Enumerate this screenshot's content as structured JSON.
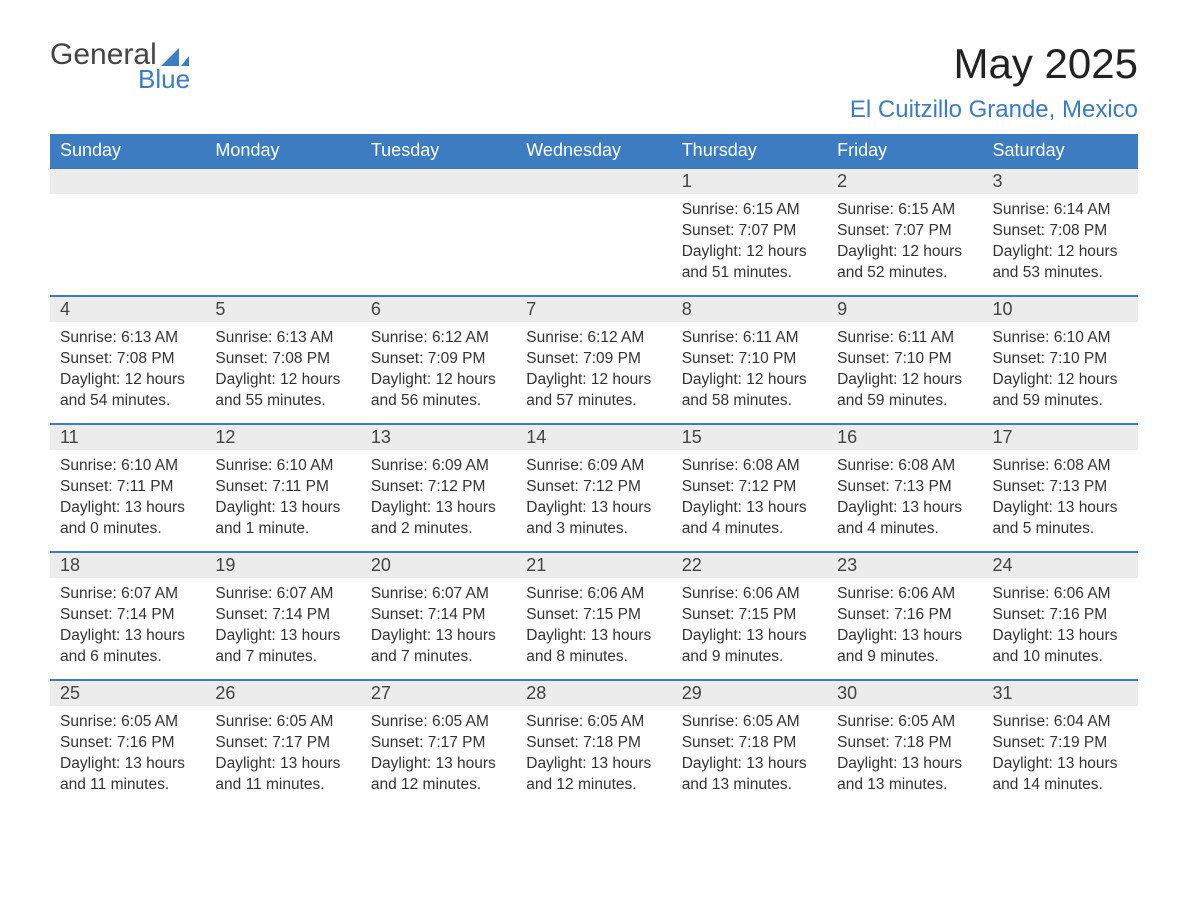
{
  "logo": {
    "text1": "General",
    "text2": "Blue",
    "icon_color": "#3d7cc0"
  },
  "title": "May 2025",
  "location": "El Cuitzillo Grande, Mexico",
  "colors": {
    "header_bg": "#3d7cc0",
    "header_text": "#ffffff",
    "daynum_bg": "#ececec",
    "row_border": "#3d7cc0",
    "body_text": "#333333",
    "page_bg": "#ffffff"
  },
  "weekdays": [
    "Sunday",
    "Monday",
    "Tuesday",
    "Wednesday",
    "Thursday",
    "Friday",
    "Saturday"
  ],
  "weeks": [
    [
      {
        "empty": true
      },
      {
        "empty": true
      },
      {
        "empty": true
      },
      {
        "empty": true
      },
      {
        "day": "1",
        "sunrise": "Sunrise: 6:15 AM",
        "sunset": "Sunset: 7:07 PM",
        "daylight": "Daylight: 12 hours and 51 minutes."
      },
      {
        "day": "2",
        "sunrise": "Sunrise: 6:15 AM",
        "sunset": "Sunset: 7:07 PM",
        "daylight": "Daylight: 12 hours and 52 minutes."
      },
      {
        "day": "3",
        "sunrise": "Sunrise: 6:14 AM",
        "sunset": "Sunset: 7:08 PM",
        "daylight": "Daylight: 12 hours and 53 minutes."
      }
    ],
    [
      {
        "day": "4",
        "sunrise": "Sunrise: 6:13 AM",
        "sunset": "Sunset: 7:08 PM",
        "daylight": "Daylight: 12 hours and 54 minutes."
      },
      {
        "day": "5",
        "sunrise": "Sunrise: 6:13 AM",
        "sunset": "Sunset: 7:08 PM",
        "daylight": "Daylight: 12 hours and 55 minutes."
      },
      {
        "day": "6",
        "sunrise": "Sunrise: 6:12 AM",
        "sunset": "Sunset: 7:09 PM",
        "daylight": "Daylight: 12 hours and 56 minutes."
      },
      {
        "day": "7",
        "sunrise": "Sunrise: 6:12 AM",
        "sunset": "Sunset: 7:09 PM",
        "daylight": "Daylight: 12 hours and 57 minutes."
      },
      {
        "day": "8",
        "sunrise": "Sunrise: 6:11 AM",
        "sunset": "Sunset: 7:10 PM",
        "daylight": "Daylight: 12 hours and 58 minutes."
      },
      {
        "day": "9",
        "sunrise": "Sunrise: 6:11 AM",
        "sunset": "Sunset: 7:10 PM",
        "daylight": "Daylight: 12 hours and 59 minutes."
      },
      {
        "day": "10",
        "sunrise": "Sunrise: 6:10 AM",
        "sunset": "Sunset: 7:10 PM",
        "daylight": "Daylight: 12 hours and 59 minutes."
      }
    ],
    [
      {
        "day": "11",
        "sunrise": "Sunrise: 6:10 AM",
        "sunset": "Sunset: 7:11 PM",
        "daylight": "Daylight: 13 hours and 0 minutes."
      },
      {
        "day": "12",
        "sunrise": "Sunrise: 6:10 AM",
        "sunset": "Sunset: 7:11 PM",
        "daylight": "Daylight: 13 hours and 1 minute."
      },
      {
        "day": "13",
        "sunrise": "Sunrise: 6:09 AM",
        "sunset": "Sunset: 7:12 PM",
        "daylight": "Daylight: 13 hours and 2 minutes."
      },
      {
        "day": "14",
        "sunrise": "Sunrise: 6:09 AM",
        "sunset": "Sunset: 7:12 PM",
        "daylight": "Daylight: 13 hours and 3 minutes."
      },
      {
        "day": "15",
        "sunrise": "Sunrise: 6:08 AM",
        "sunset": "Sunset: 7:12 PM",
        "daylight": "Daylight: 13 hours and 4 minutes."
      },
      {
        "day": "16",
        "sunrise": "Sunrise: 6:08 AM",
        "sunset": "Sunset: 7:13 PM",
        "daylight": "Daylight: 13 hours and 4 minutes."
      },
      {
        "day": "17",
        "sunrise": "Sunrise: 6:08 AM",
        "sunset": "Sunset: 7:13 PM",
        "daylight": "Daylight: 13 hours and 5 minutes."
      }
    ],
    [
      {
        "day": "18",
        "sunrise": "Sunrise: 6:07 AM",
        "sunset": "Sunset: 7:14 PM",
        "daylight": "Daylight: 13 hours and 6 minutes."
      },
      {
        "day": "19",
        "sunrise": "Sunrise: 6:07 AM",
        "sunset": "Sunset: 7:14 PM",
        "daylight": "Daylight: 13 hours and 7 minutes."
      },
      {
        "day": "20",
        "sunrise": "Sunrise: 6:07 AM",
        "sunset": "Sunset: 7:14 PM",
        "daylight": "Daylight: 13 hours and 7 minutes."
      },
      {
        "day": "21",
        "sunrise": "Sunrise: 6:06 AM",
        "sunset": "Sunset: 7:15 PM",
        "daylight": "Daylight: 13 hours and 8 minutes."
      },
      {
        "day": "22",
        "sunrise": "Sunrise: 6:06 AM",
        "sunset": "Sunset: 7:15 PM",
        "daylight": "Daylight: 13 hours and 9 minutes."
      },
      {
        "day": "23",
        "sunrise": "Sunrise: 6:06 AM",
        "sunset": "Sunset: 7:16 PM",
        "daylight": "Daylight: 13 hours and 9 minutes."
      },
      {
        "day": "24",
        "sunrise": "Sunrise: 6:06 AM",
        "sunset": "Sunset: 7:16 PM",
        "daylight": "Daylight: 13 hours and 10 minutes."
      }
    ],
    [
      {
        "day": "25",
        "sunrise": "Sunrise: 6:05 AM",
        "sunset": "Sunset: 7:16 PM",
        "daylight": "Daylight: 13 hours and 11 minutes."
      },
      {
        "day": "26",
        "sunrise": "Sunrise: 6:05 AM",
        "sunset": "Sunset: 7:17 PM",
        "daylight": "Daylight: 13 hours and 11 minutes."
      },
      {
        "day": "27",
        "sunrise": "Sunrise: 6:05 AM",
        "sunset": "Sunset: 7:17 PM",
        "daylight": "Daylight: 13 hours and 12 minutes."
      },
      {
        "day": "28",
        "sunrise": "Sunrise: 6:05 AM",
        "sunset": "Sunset: 7:18 PM",
        "daylight": "Daylight: 13 hours and 12 minutes."
      },
      {
        "day": "29",
        "sunrise": "Sunrise: 6:05 AM",
        "sunset": "Sunset: 7:18 PM",
        "daylight": "Daylight: 13 hours and 13 minutes."
      },
      {
        "day": "30",
        "sunrise": "Sunrise: 6:05 AM",
        "sunset": "Sunset: 7:18 PM",
        "daylight": "Daylight: 13 hours and 13 minutes."
      },
      {
        "day": "31",
        "sunrise": "Sunrise: 6:04 AM",
        "sunset": "Sunset: 7:19 PM",
        "daylight": "Daylight: 13 hours and 14 minutes."
      }
    ]
  ]
}
